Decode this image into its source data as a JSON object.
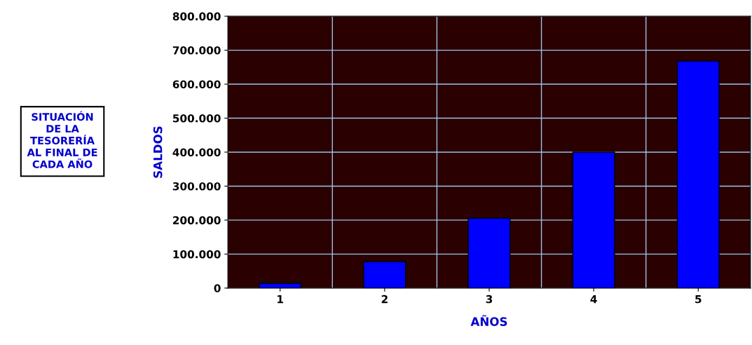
{
  "chart_data": {
    "type": "bar",
    "title": "SITUACIÓN\nDE LA\nTESORERÍA\nAL FINAL DE\nCADA AÑO",
    "xlabel": "AÑOS",
    "ylabel": "SALDOS",
    "categories": [
      "1",
      "2",
      "3",
      "4",
      "5"
    ],
    "values": [
      14000,
      78000,
      206000,
      400000,
      668000
    ],
    "color": "#0000ff",
    "ylim": [
      0,
      800000
    ],
    "yticks": [
      {
        "value": 0,
        "label": "0"
      },
      {
        "value": 100000,
        "label": "100.000"
      },
      {
        "value": 200000,
        "label": "200.000"
      },
      {
        "value": 300000,
        "label": "300.000"
      },
      {
        "value": 400000,
        "label": "400.000"
      },
      {
        "value": 500000,
        "label": "500.000"
      },
      {
        "value": 600000,
        "label": "600.000"
      },
      {
        "value": 700000,
        "label": "700.000"
      },
      {
        "value": 800000,
        "label": "800.000"
      }
    ],
    "grid": true
  }
}
